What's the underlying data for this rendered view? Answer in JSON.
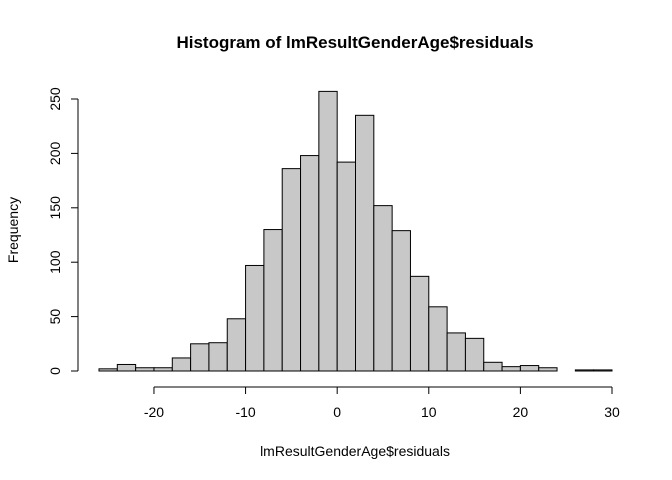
{
  "chart_data": {
    "type": "bar",
    "title": "Histogram of lmResultGenderAge$residuals",
    "xlabel": "lmResultGenderAge$residuals",
    "ylabel": "Frequency",
    "bin_width": 2,
    "bins_start": [
      -26,
      -24,
      -22,
      -20,
      -18,
      -16,
      -14,
      -12,
      -10,
      -8,
      -6,
      -4,
      -2,
      0,
      2,
      4,
      6,
      8,
      10,
      12,
      14,
      16,
      18,
      20,
      22,
      24,
      26,
      28
    ],
    "values": [
      2,
      6,
      3,
      3,
      12,
      25,
      26,
      48,
      97,
      130,
      186,
      198,
      257,
      192,
      235,
      152,
      129,
      87,
      59,
      35,
      30,
      8,
      4,
      5,
      3,
      0,
      1,
      1
    ],
    "xlim": [
      -26,
      30
    ],
    "ylim": [
      0,
      250
    ],
    "xticks": [
      -20,
      -10,
      0,
      10,
      20,
      30
    ],
    "yticks": [
      0,
      50,
      100,
      150,
      200,
      250
    ],
    "bar_color": "#c8c8c8",
    "edge_color": "#000000",
    "grid": false
  }
}
